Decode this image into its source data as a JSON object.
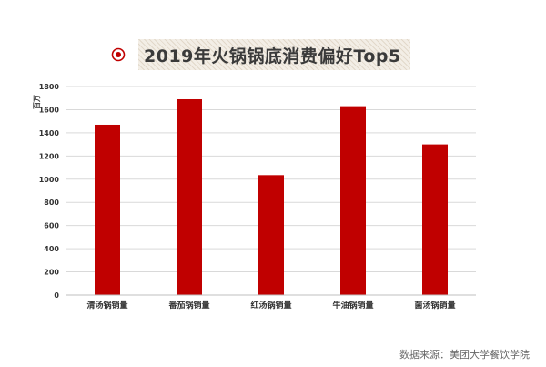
{
  "title": "2019年火锅锅底消费偏好Top5",
  "source": "数据来源：美团大学餐饮学院",
  "accent_color": "#c00000",
  "icon": "target-circle-icon",
  "chart_data": {
    "type": "bar",
    "title": "2019年火锅锅底消费偏好Top5",
    "ylabel": "百万",
    "xlabel": "",
    "categories": [
      "清汤锅销量",
      "番茄锅销量",
      "红汤锅销量",
      "牛油锅销量",
      "菌汤锅销量"
    ],
    "values": [
      1470,
      1690,
      1035,
      1630,
      1300
    ],
    "ylim": [
      0,
      1800
    ],
    "yticks": [
      0,
      200,
      400,
      600,
      800,
      1000,
      1200,
      1400,
      1600,
      1800
    ],
    "grid": true,
    "bar_color": "#c00000"
  }
}
